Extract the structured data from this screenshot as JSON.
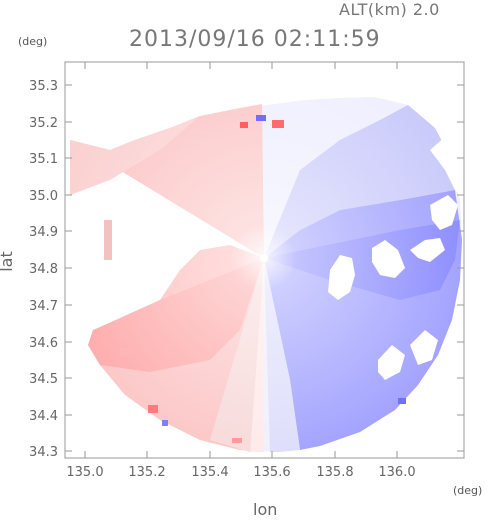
{
  "header": {
    "altitude_label": "ALT(km) 2.0",
    "timestamp": "2013/09/16 02:11:59"
  },
  "axes": {
    "y_unit": "(deg)",
    "x_unit": "(deg)",
    "y_label": "lat",
    "x_label": "lon",
    "y_ticks": [
      "35.3",
      "35.2",
      "35.1",
      "35.0",
      "34.9",
      "34.8",
      "34.7",
      "34.6",
      "34.5",
      "34.4",
      "34.3"
    ],
    "x_ticks": [
      "135.0",
      "135.2",
      "135.4",
      "135.6",
      "135.8",
      "136.0"
    ]
  },
  "colors": {
    "receding": "#ff8a8a",
    "approaching": "#6f6fff",
    "neutral": "#f4f4ff",
    "frame": "#9a9a9a"
  }
}
